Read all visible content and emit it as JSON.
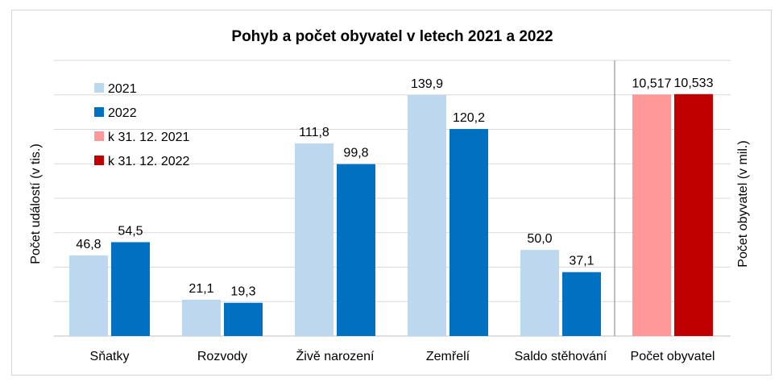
{
  "chart_data": {
    "type": "bar",
    "title": "Pohyb a počet obyvatel v letech 2021 a 2022",
    "ylabel_left": "Počet událostí (v tis.)",
    "ylabel_right": "Počet obyvatel (v mil.)",
    "grid": true,
    "legend_position": "top-left",
    "left_axis": {
      "ylim": [
        0,
        160
      ],
      "categories": [
        "Sňatky",
        "Rozvody",
        "Živě narození",
        "Zemřelí",
        "Saldo stěhování"
      ],
      "series": [
        {
          "name": "2021",
          "color": "#bdd7ee",
          "values": [
            46.8,
            21.1,
            111.8,
            139.9,
            50.0
          ],
          "labels": [
            "46,8",
            "21,1",
            "111,8",
            "139,9",
            "50,0"
          ]
        },
        {
          "name": "2022",
          "color": "#0070c0",
          "values": [
            54.5,
            19.3,
            99.8,
            120.2,
            37.1
          ],
          "labels": [
            "54,5",
            "19,3",
            "99,8",
            "120,2",
            "37,1"
          ]
        }
      ]
    },
    "right_axis": {
      "ylim": [
        0,
        12
      ],
      "categories": [
        "Počet obyvatel"
      ],
      "series": [
        {
          "name": "k 31. 12. 2021",
          "color": "#ff9999",
          "values": [
            10.517
          ],
          "labels": [
            "10,517"
          ]
        },
        {
          "name": "k 31. 12. 2022",
          "color": "#c00000",
          "values": [
            10.533
          ],
          "labels": [
            "10,533"
          ]
        }
      ]
    }
  }
}
